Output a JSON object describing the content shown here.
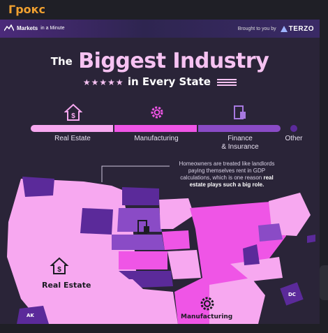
{
  "app": {
    "title": "Грокс"
  },
  "header": {
    "brand_left": "Markets",
    "brand_left_small": "in a Minute",
    "brought_by": "Brought to you by",
    "sponsor": "TERZO"
  },
  "title": {
    "the": "The",
    "main": "Biggest Industry",
    "stars": "★★★★★",
    "sub": "in Every State"
  },
  "legend": {
    "items": [
      {
        "label": "Real Estate",
        "color": "#f7a8f0",
        "icon": "house-dollar-icon"
      },
      {
        "label": "Manufacturing",
        "color": "#ef55e6",
        "icon": "gear-icon"
      },
      {
        "label": "Finance\n& Insurance",
        "color": "#8a4bc6",
        "icon": "finance-building-icon"
      },
      {
        "label": "Other",
        "color": "#5b2a9a",
        "icon": "dot-icon"
      }
    ]
  },
  "callout": {
    "text": "Homeowners are treated like landlords paying themselves rent in GDP calculations, which is one reason",
    "bold": "real estate plays such a big role."
  },
  "map_labels": {
    "real_estate": "Real Estate",
    "manufacturing": "Manufacturing",
    "dc": "DC",
    "ak": "AK"
  },
  "states": [
    "WA",
    "OR",
    "ID",
    "MT",
    "ND",
    "SD",
    "WY",
    "NV",
    "CA",
    "UT",
    "CO",
    "AZ",
    "NM",
    "NE",
    "KS",
    "OK",
    "TX",
    "MN",
    "IA",
    "MO",
    "AR",
    "LA",
    "WI",
    "IL",
    "MI",
    "IN",
    "OH",
    "KY",
    "TN",
    "MS",
    "AL",
    "GA",
    "FL",
    "SC",
    "NC",
    "VA",
    "WV",
    "PA",
    "NY",
    "VT",
    "NH",
    "ME",
    "MA",
    "RI",
    "CT",
    "NJ",
    "DE",
    "MD"
  ],
  "colors": {
    "real_estate": "#f7a8f0",
    "manufacturing": "#ef55e6",
    "finance": "#8a4bc6",
    "other": "#5b2a9a",
    "bg": "#2a2438"
  }
}
